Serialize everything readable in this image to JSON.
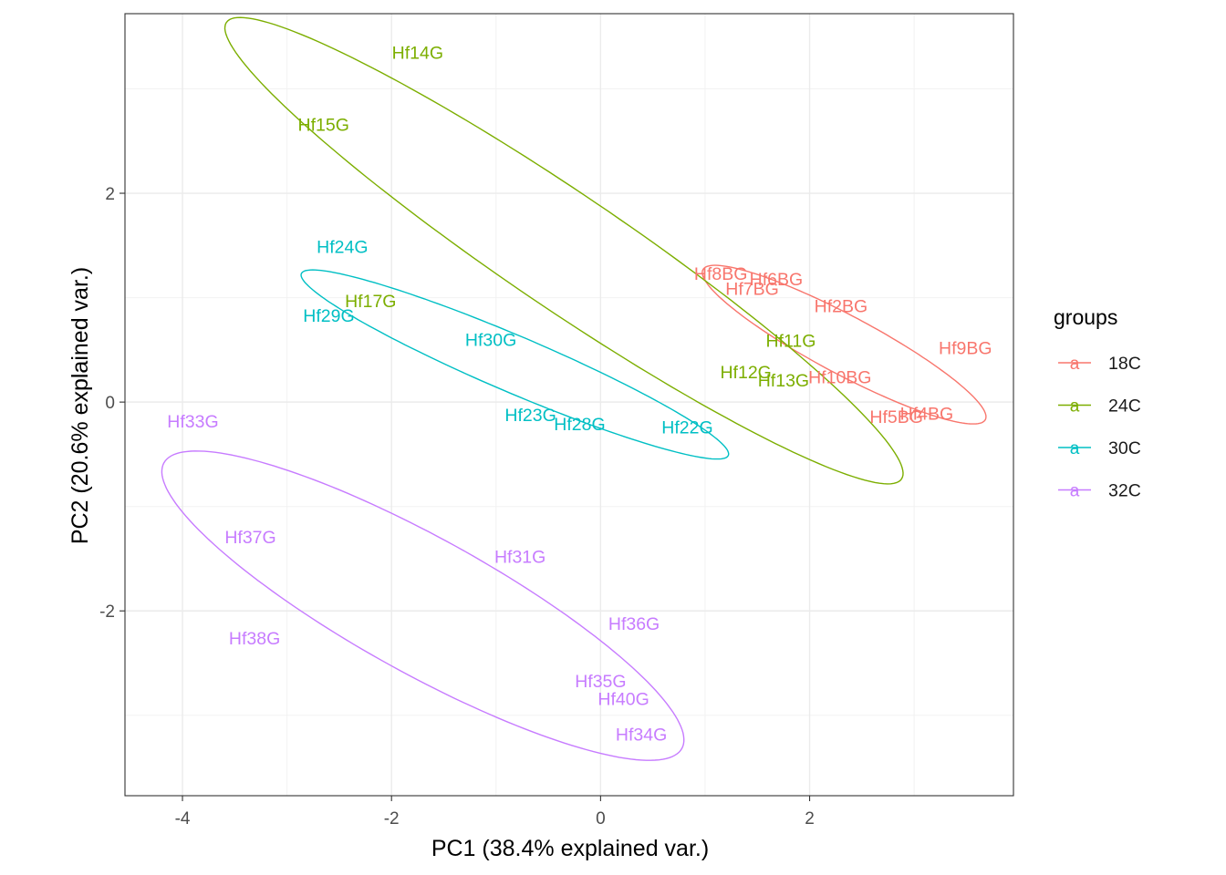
{
  "chart_data": {
    "type": "scatter",
    "subtype": "PCA biplot with text labels and group ellipses",
    "xlabel": "PC1 (38.4% explained var.)",
    "ylabel": "PC2 (20.6% explained var.)",
    "xlim": [
      -4.55,
      3.95
    ],
    "ylim": [
      -3.77,
      3.72
    ],
    "x_ticks": [
      -4,
      -2,
      0,
      2
    ],
    "y_ticks": [
      -2,
      0,
      2
    ],
    "x_minor": [
      -3,
      -1,
      1,
      3
    ],
    "y_minor": [
      -3,
      -1,
      1,
      3
    ],
    "x_tick_labels": [
      "-4",
      "-2",
      "0",
      "2"
    ],
    "y_tick_labels": [
      "-2",
      "0",
      "2"
    ],
    "grid": true,
    "legend": {
      "title": "groups",
      "position": "right",
      "key_glyph": "a",
      "entries": [
        "18C",
        "24C",
        "30C",
        "32C"
      ]
    },
    "groups": [
      {
        "name": "18C",
        "color": "#F8766D",
        "ellipse": {
          "cx": 2.33,
          "cy": 0.55,
          "rx": 1.53,
          "ry": 0.28,
          "angle_deg": -28
        },
        "points": [
          {
            "label": "Hf8BG",
            "x": 1.15,
            "y": 1.23
          },
          {
            "label": "Hf6BG",
            "x": 1.68,
            "y": 1.18
          },
          {
            "label": "Hf7BG",
            "x": 1.45,
            "y": 1.09
          },
          {
            "label": "Hf2BG",
            "x": 2.3,
            "y": 0.92
          },
          {
            "label": "Hf9BG",
            "x": 3.49,
            "y": 0.52
          },
          {
            "label": "Hf10BG",
            "x": 2.29,
            "y": 0.24
          },
          {
            "label": "Hf4BG",
            "x": 3.12,
            "y": -0.11
          },
          {
            "label": "Hf5BG",
            "x": 2.83,
            "y": -0.14
          }
        ]
      },
      {
        "name": "24C",
        "color": "#7CAE00",
        "ellipse": {
          "cx": -0.35,
          "cy": 1.45,
          "rx": 3.9,
          "ry": 0.55,
          "angle_deg": -34.1
        },
        "points": [
          {
            "label": "Hf14G",
            "x": -1.75,
            "y": 3.35
          },
          {
            "label": "Hf15G",
            "x": -2.65,
            "y": 2.66
          },
          {
            "label": "Hf17G",
            "x": -2.2,
            "y": 0.97
          },
          {
            "label": "Hf11G",
            "x": 1.82,
            "y": 0.59
          },
          {
            "label": "Hf12G",
            "x": 1.39,
            "y": 0.29
          },
          {
            "label": "Hf13G",
            "x": 1.75,
            "y": 0.21
          }
        ]
      },
      {
        "name": "30C",
        "color": "#00BFC4",
        "ellipse": {
          "cx": -0.82,
          "cy": 0.36,
          "rx": 2.22,
          "ry": 0.27,
          "angle_deg": -23.1
        },
        "points": [
          {
            "label": "Hf24G",
            "x": -2.47,
            "y": 1.49
          },
          {
            "label": "Hf29G",
            "x": -2.6,
            "y": 0.83
          },
          {
            "label": "Hf30G",
            "x": -1.05,
            "y": 0.6
          },
          {
            "label": "Hf23G",
            "x": -0.67,
            "y": -0.12
          },
          {
            "label": "Hf28G",
            "x": -0.2,
            "y": -0.21
          },
          {
            "label": "Hf22G",
            "x": 0.83,
            "y": -0.24
          }
        ]
      },
      {
        "name": "32C",
        "color": "#C77CFF",
        "ellipse": {
          "cx": -1.7,
          "cy": -1.95,
          "rx": 2.83,
          "ry": 0.65,
          "angle_deg": -28.9
        },
        "points": [
          {
            "label": "Hf33G",
            "x": -3.9,
            "y": -0.18
          },
          {
            "label": "Hf37G",
            "x": -3.35,
            "y": -1.29
          },
          {
            "label": "Hf31G",
            "x": -0.77,
            "y": -1.48
          },
          {
            "label": "Hf38G",
            "x": -3.31,
            "y": -2.26
          },
          {
            "label": "Hf36G",
            "x": 0.32,
            "y": -2.12
          },
          {
            "label": "Hf35G",
            "x": 0.0,
            "y": -2.67
          },
          {
            "label": "Hf40G",
            "x": 0.22,
            "y": -2.84
          },
          {
            "label": "Hf34G",
            "x": 0.39,
            "y": -3.18
          }
        ]
      }
    ]
  }
}
